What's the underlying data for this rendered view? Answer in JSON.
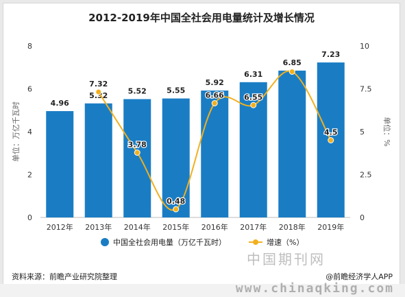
{
  "title": "2012-2019年中国全社会用电量统计及增长情况",
  "colors": {
    "bar": "#1a7dc4",
    "line": "#f2b01e",
    "text": "#333333",
    "axis": "#666666"
  },
  "chart_data": {
    "type": "bar",
    "categories": [
      "2012年",
      "2013年",
      "2014年",
      "2015年",
      "2016年",
      "2017年",
      "2018年",
      "2019年"
    ],
    "series": [
      {
        "name": "中国全社会用电量（万亿千瓦时）",
        "type": "bar",
        "axis": "left",
        "values": [
          4.96,
          5.32,
          5.52,
          5.55,
          5.92,
          6.31,
          6.85,
          7.23
        ],
        "labels": [
          "4.96",
          "5.32",
          "5.52",
          "5.55",
          "5.92",
          "6.31",
          "6.85",
          "7.23"
        ]
      },
      {
        "name": "增速（%）",
        "type": "line",
        "axis": "right",
        "values": [
          null,
          7.32,
          3.78,
          0.48,
          6.66,
          6.55,
          8.5,
          4.5
        ],
        "labels": [
          null,
          "7.32",
          "3.78",
          "0.48",
          "6.66",
          "6.55",
          null,
          "4.5"
        ]
      }
    ],
    "ylabel": "单位：万亿千瓦时",
    "y2label": "单位：%",
    "ylim": [
      0,
      8
    ],
    "y2lim": [
      0,
      10
    ],
    "yticks": [
      "0",
      "2",
      "4",
      "6",
      "8"
    ],
    "y2ticks": [
      "0",
      "2.5",
      "5",
      "7.5",
      "10"
    ],
    "grid": false,
    "legend": "bottom"
  },
  "source": "资料来源：前瞻产业研究院整理",
  "brand": "@前瞻经济学人APP",
  "watermark_cn": "中国期刊网",
  "watermark_site": "www.chinaqking.com"
}
